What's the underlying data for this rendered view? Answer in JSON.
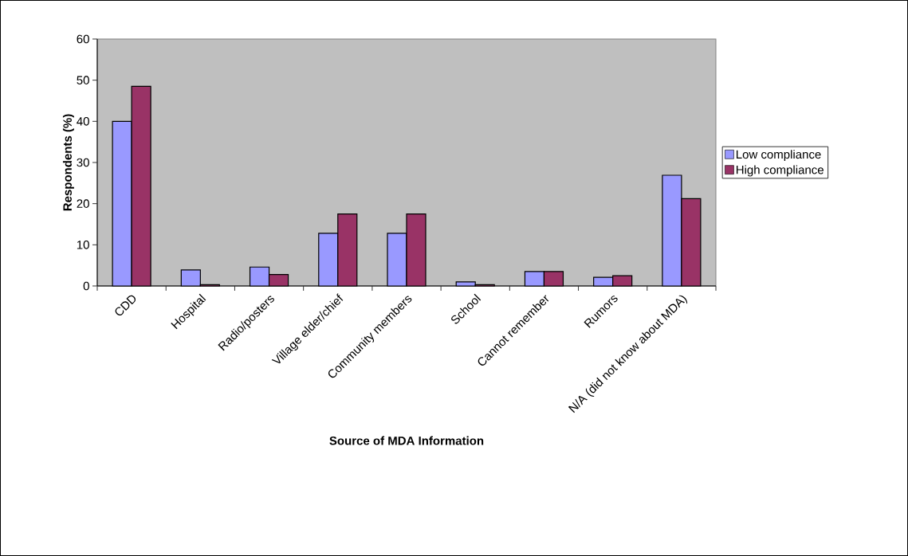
{
  "chart_data": {
    "type": "bar",
    "xlabel": "Source of MDA Information",
    "ylabel": "Respondents (%)",
    "categories": [
      "CDD",
      "Hospital",
      "Radio/posters",
      "Village elder/chief",
      "Community members",
      "School",
      "Cannot remember",
      "Rumors",
      "N/A (did not know about MDA)"
    ],
    "series": [
      {
        "name": "Low compliance",
        "color": "#9999ff",
        "values": [
          40,
          3.9,
          4.6,
          12.8,
          12.8,
          1.0,
          3.5,
          2.1,
          26.9
        ]
      },
      {
        "name": "High compliance",
        "color": "#993366",
        "values": [
          48.5,
          0.3,
          2.8,
          17.5,
          17.5,
          0.3,
          3.5,
          2.5,
          21.2
        ]
      }
    ],
    "ylim": [
      0,
      60
    ],
    "yticks": [
      0,
      10,
      20,
      30,
      40,
      50,
      60
    ],
    "grid": false,
    "legend": "right"
  }
}
